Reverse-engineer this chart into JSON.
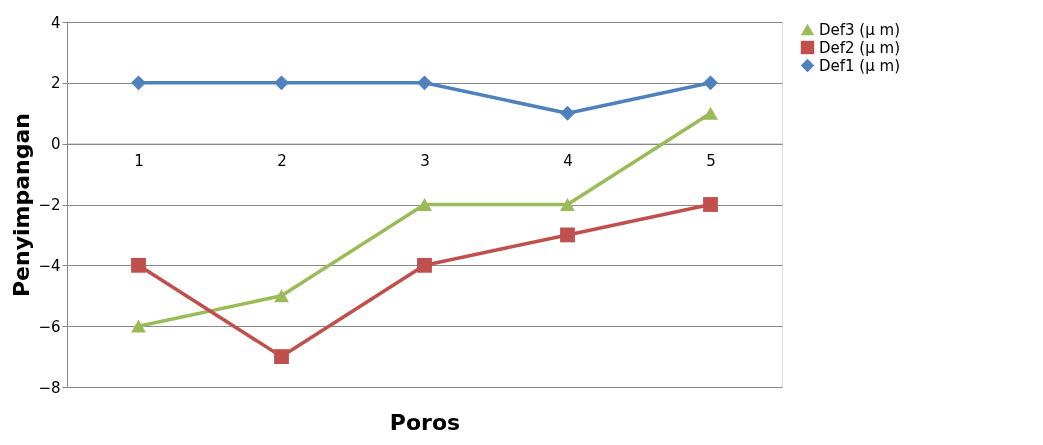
{
  "chart_data": {
    "type": "line",
    "xlabel": "Poros",
    "ylabel": "Penyimpangan",
    "categories": [
      "1",
      "2",
      "3",
      "4",
      "5"
    ],
    "series": [
      {
        "name": "Def3 (µ m)",
        "color": "#9bbb59",
        "marker": "triangle",
        "values": [
          -6,
          -5,
          -2,
          -2,
          1
        ]
      },
      {
        "name": "Def2 (µ m)",
        "color": "#c0504d",
        "marker": "square",
        "values": [
          -4,
          -7,
          -4,
          -3,
          -2
        ]
      },
      {
        "name": "Def1 (µ m)",
        "color": "#4f81bd",
        "marker": "diamond",
        "values": [
          2,
          2,
          2,
          1,
          2
        ]
      }
    ],
    "ylim": [
      -8,
      4
    ],
    "yticks": [
      -8,
      -6,
      -4,
      -2,
      0,
      2,
      4
    ],
    "grid": "y",
    "legend": "right",
    "line_style": "solid"
  }
}
